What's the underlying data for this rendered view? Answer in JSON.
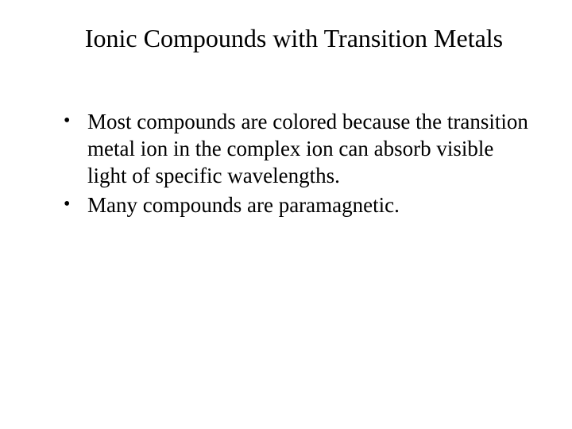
{
  "slide": {
    "title": "Ionic Compounds with Transition Metals",
    "bullets": [
      "Most compounds are colored because the transition metal ion in the complex ion can absorb visible light of specific wavelengths.",
      "Many compounds are paramagnetic."
    ],
    "background_color": "#ffffff",
    "text_color": "#000000",
    "title_fontsize": 32,
    "body_fontsize": 27,
    "font_family": "Times New Roman"
  }
}
